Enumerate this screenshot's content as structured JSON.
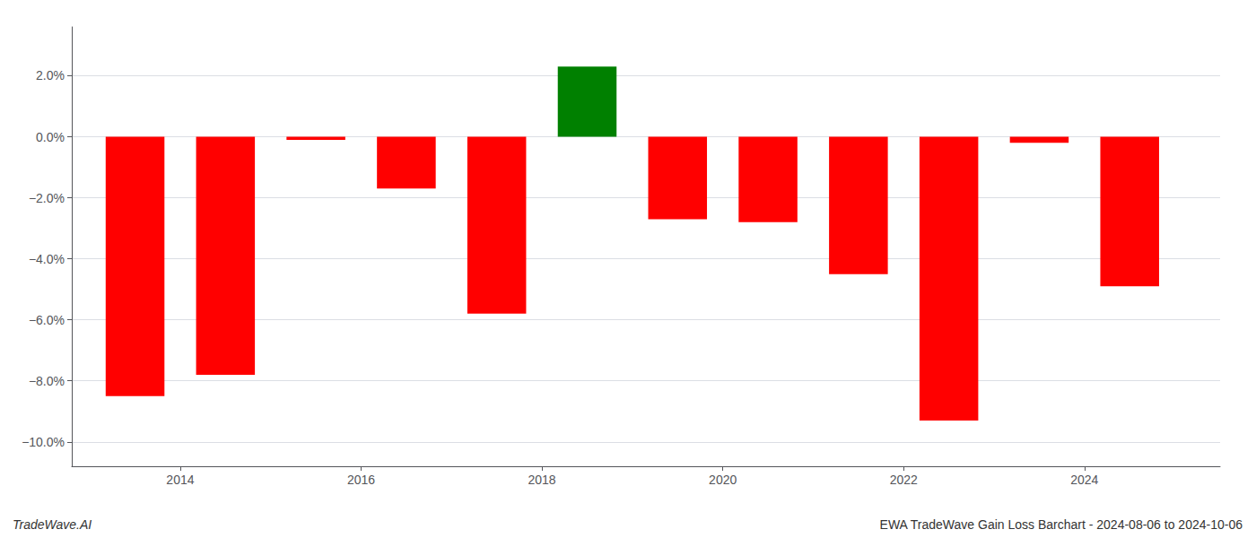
{
  "chart_data": {
    "type": "bar",
    "x": [
      2013.5,
      2014.5,
      2015.5,
      2016.5,
      2017.5,
      2018.5,
      2019.5,
      2020.5,
      2021.5,
      2022.5,
      2023.5,
      2024.5
    ],
    "values": [
      -0.085,
      -0.078,
      -0.001,
      -0.017,
      -0.058,
      0.023,
      -0.027,
      -0.028,
      -0.045,
      -0.093,
      -0.002,
      -0.049
    ],
    "colors": [
      "#ff0000",
      "#ff0000",
      "#ff0000",
      "#ff0000",
      "#ff0000",
      "#008000",
      "#ff0000",
      "#ff0000",
      "#ff0000",
      "#ff0000",
      "#ff0000",
      "#ff0000"
    ],
    "xlim": [
      2012.8,
      2025.5
    ],
    "xticks": [
      2014,
      2016,
      2018,
      2020,
      2022,
      2024
    ],
    "ylim": [
      -0.108,
      0.036
    ],
    "yticks": [
      {
        "value": -0.1,
        "label": "−10.0%"
      },
      {
        "value": -0.08,
        "label": "−8.0%"
      },
      {
        "value": -0.06,
        "label": "−6.0%"
      },
      {
        "value": -0.04,
        "label": "−4.0%"
      },
      {
        "value": -0.02,
        "label": "−2.0%"
      },
      {
        "value": 0.0,
        "label": "0.0%"
      },
      {
        "value": 0.02,
        "label": "2.0%"
      }
    ],
    "grid": true,
    "annotations": [
      "TradeWave.AI",
      "EWA TradeWave Gain Loss Barchart - 2024-08-06 to 2024-10-06"
    ]
  }
}
